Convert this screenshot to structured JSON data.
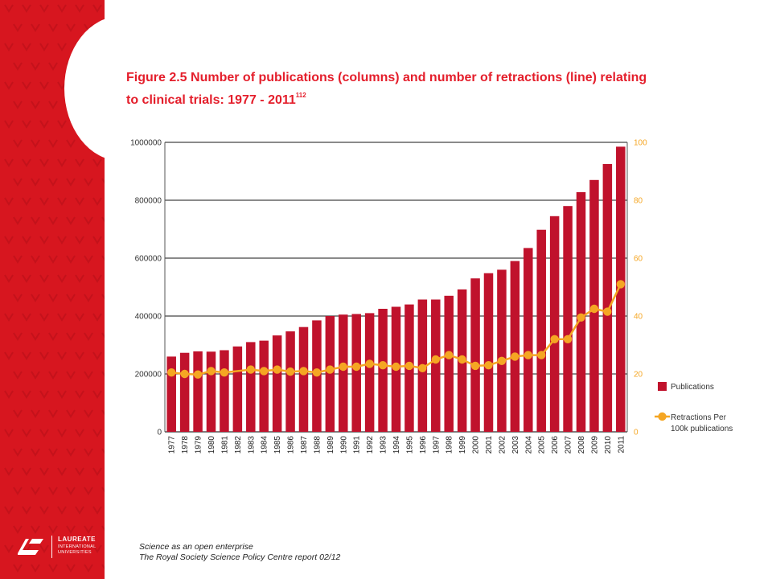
{
  "slide": {
    "title_main": "Figure 2.5 Number of publications (columns) and number of retractions (line) relating to clinical trials: 1977 - 2011",
    "title_ref": "112",
    "footer_line1": "Science as an open enterprise",
    "footer_line2": "The Royal Society Science Policy Centre report 02/12",
    "logo_name": "LAUREATE",
    "logo_sub1": "INTERNATIONAL",
    "logo_sub2": "UNIVERSITIES",
    "colors": {
      "brand_red": "#d7161f",
      "bar": "#c0122c",
      "line": "#f5a623",
      "title": "#e41e2b"
    }
  },
  "chart_data": {
    "type": "bar",
    "categories": [
      "1977",
      "1978",
      "1979",
      "1980",
      "1981",
      "1982",
      "1983",
      "1984",
      "1985",
      "1986",
      "1987",
      "1988",
      "1989",
      "1990",
      "1991",
      "1992",
      "1993",
      "1994",
      "1995",
      "1996",
      "1997",
      "1998",
      "1999",
      "2000",
      "2001",
      "2002",
      "2003",
      "2004",
      "2005",
      "2006",
      "2007",
      "2008",
      "2009",
      "2010",
      "2011"
    ],
    "series": [
      {
        "name": "Publications",
        "type": "bar",
        "axis": "left",
        "values": [
          260000,
          273000,
          278000,
          277000,
          282000,
          295000,
          310000,
          315000,
          333000,
          347000,
          362000,
          385000,
          400000,
          405000,
          407000,
          410000,
          425000,
          432000,
          440000,
          457000,
          457000,
          470000,
          492000,
          530000,
          548000,
          560000,
          590000,
          635000,
          698000,
          745000,
          780000,
          828000,
          870000,
          925000,
          985000
        ]
      },
      {
        "name": "Retractions Per 100k publications",
        "type": "line",
        "axis": "right",
        "values": [
          20.5,
          20,
          19.8,
          21,
          20.5,
          null,
          21.5,
          21,
          21.5,
          20.8,
          21,
          20.5,
          21.5,
          22.5,
          22.5,
          23.5,
          23,
          22.5,
          22.8,
          22,
          25,
          26.5,
          25,
          22.8,
          23,
          24.5,
          26,
          26.5,
          26.5,
          32,
          32,
          39.5,
          42.5,
          41.5,
          51
        ]
      }
    ],
    "y_left": {
      "ylim": [
        0,
        1000000
      ],
      "ticks": [
        "0",
        "200000",
        "400000",
        "600000",
        "800000",
        "1000000"
      ]
    },
    "y_right": {
      "ylim": [
        0,
        100
      ],
      "ticks": [
        "0",
        "20",
        "40",
        "60",
        "80",
        "100"
      ]
    },
    "legend": {
      "position": "right",
      "items": [
        {
          "label": "Publications",
          "marker": "square"
        },
        {
          "label_line1": "Retractions Per",
          "label_line2": "100k publications",
          "marker": "line-dot"
        }
      ]
    },
    "grid": true
  }
}
